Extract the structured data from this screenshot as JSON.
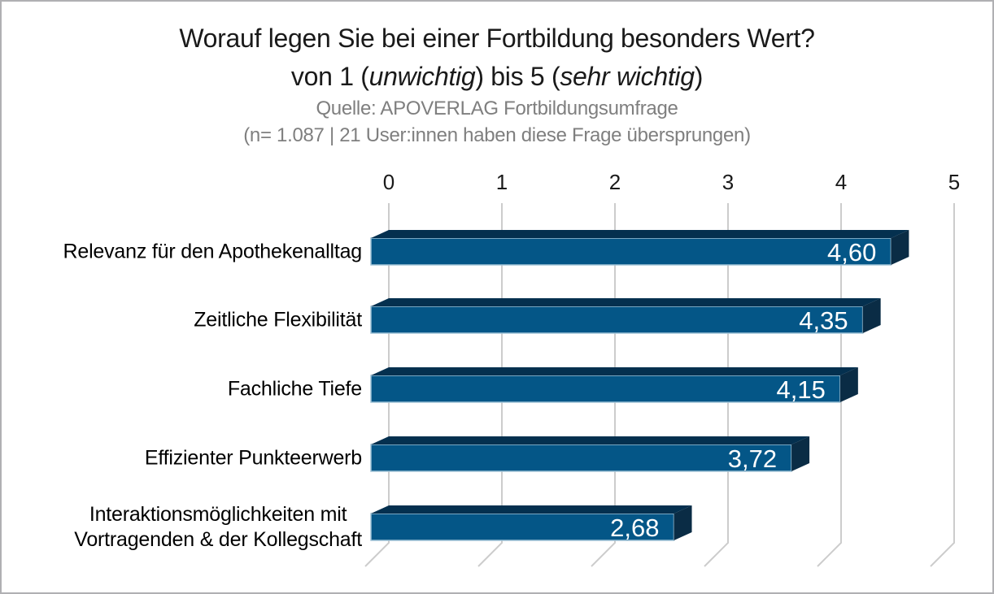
{
  "page": {
    "background": "#ffffff",
    "border_color": "#b0b0b3"
  },
  "chart_data": {
    "type": "bar",
    "orientation": "horizontal",
    "style": "3d",
    "title_line1": "Worauf legen Sie bei einer Fortbildung besonders Wert?",
    "title_line2_parts": {
      "pre": "von 1 (",
      "italic1": "unwichtig",
      "mid": ") bis 5 (",
      "italic2": "sehr wichtig",
      "post": ")"
    },
    "subtitle_line1": "Quelle: APOVERLAG Fortbildungsumfrage",
    "subtitle_line2": "(n= 1.087 | 21 User:innen haben diese Frage übersprungen)",
    "categories": [
      "Relevanz für den Apothekenalltag",
      "Zeitliche Flexibilität",
      "Fachliche Tiefe",
      "Effizienter Punkteerwerb",
      "Interaktionsmöglichkeiten mit\nVortragenden & der Kollegschaft"
    ],
    "values": [
      4.6,
      4.35,
      4.15,
      3.72,
      2.68
    ],
    "value_labels": [
      "4,60",
      "4,35",
      "4,15",
      "3,72",
      "2,68"
    ],
    "x_ticks": [
      0,
      1,
      2,
      3,
      4,
      5
    ],
    "xlim": [
      0,
      5
    ],
    "grid": true,
    "legend": false,
    "colors": {
      "bar_front": "#045687",
      "bar_top": "#04304f",
      "bar_side": "#0a2c45",
      "bar_edge_light": "#9fc2d6",
      "gridline": "#cccccc",
      "title_text": "#1a1a1a",
      "subtitle_text": "#7f7f7f",
      "tick_text": "#1a1a1a",
      "category_text": "#000000",
      "value_text": "#ffffff"
    }
  }
}
